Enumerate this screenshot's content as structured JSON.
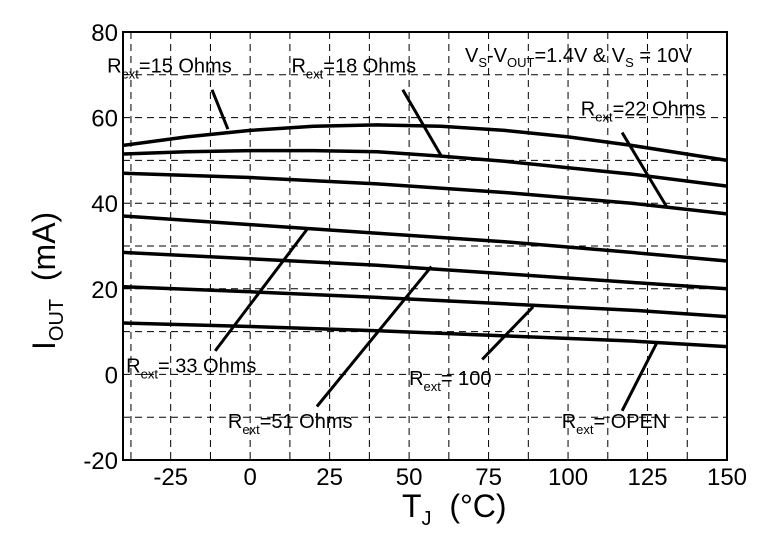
{
  "chart_data": {
    "type": "line",
    "xlabel": {
      "main": "T",
      "sub": "J",
      "rest": "  (°C)"
    },
    "ylabel": {
      "main": "I",
      "sub": "OUT",
      "rest": "  (mA)"
    },
    "xlim": [
      -40,
      150
    ],
    "ylim": [
      -20,
      80
    ],
    "x_ticks": [
      -25,
      0,
      25,
      50,
      75,
      100,
      125,
      150
    ],
    "y_ticks": [
      -20,
      0,
      20,
      40,
      60,
      80
    ],
    "grid": true,
    "condition": {
      "p1": "V",
      "s1": "S",
      "p2": "-V",
      "s2": "OUT",
      "p3": "=1.4V & V",
      "s3": "S",
      "p4": " = 10V"
    },
    "series": [
      {
        "name": "15 Ohms",
        "x": [
          -40,
          -20,
          0,
          20,
          40,
          60,
          80,
          100,
          120,
          150
        ],
        "y": [
          53.5,
          55.5,
          57.0,
          58.0,
          58.3,
          58.0,
          57.0,
          55.5,
          53.5,
          50.0
        ]
      },
      {
        "name": "18 Ohms",
        "x": [
          -40,
          -20,
          0,
          20,
          40,
          60,
          80,
          100,
          120,
          150
        ],
        "y": [
          51.5,
          52.0,
          52.3,
          52.3,
          52.0,
          51.0,
          49.8,
          48.3,
          46.8,
          44.0
        ]
      },
      {
        "name": "22 Ohms",
        "x": [
          -40,
          0,
          40,
          80,
          120,
          150
        ],
        "y": [
          47.0,
          46.0,
          44.5,
          42.5,
          40.0,
          37.5
        ]
      },
      {
        "name": "33 Ohms",
        "x": [
          -40,
          0,
          40,
          80,
          120,
          150
        ],
        "y": [
          37.0,
          35.0,
          33.0,
          31.0,
          28.5,
          26.5
        ]
      },
      {
        "name": "51 Ohms",
        "x": [
          -40,
          0,
          40,
          80,
          120,
          150
        ],
        "y": [
          28.5,
          27.0,
          25.5,
          23.5,
          21.5,
          20.0
        ]
      },
      {
        "name": "100",
        "x": [
          -40,
          0,
          40,
          80,
          120,
          150
        ],
        "y": [
          20.5,
          19.3,
          18.0,
          16.5,
          15.0,
          13.5
        ]
      },
      {
        "name": "OPEN",
        "x": [
          -40,
          0,
          40,
          80,
          120,
          150
        ],
        "y": [
          12.0,
          11.2,
          10.2,
          9.0,
          7.8,
          6.5
        ]
      }
    ],
    "annotations": [
      {
        "id": "r15",
        "prefix": "R",
        "sub": "ext",
        "text": "=15 Ohms",
        "x": -45,
        "y": 70.5,
        "leader": [
          [
            -12,
            66.5
          ],
          [
            -7,
            57.3
          ]
        ]
      },
      {
        "id": "r18",
        "prefix": "R",
        "sub": "ext",
        "text": "=18 Ohms",
        "x": 13,
        "y": 70.5,
        "leader": [
          [
            48,
            66.5
          ],
          [
            60,
            51.2
          ]
        ]
      },
      {
        "id": "r22",
        "prefix": "R",
        "sub": "ext",
        "text": "=22 Ohms",
        "x": 104,
        "y": 60.5,
        "leader": [
          [
            117,
            56.5
          ],
          [
            131,
            39.2
          ]
        ]
      },
      {
        "id": "r33",
        "prefix": "R",
        "sub": "ext",
        "text": "= 33 Ohms",
        "x": -39,
        "y": 0.5,
        "leader": [
          [
            -11,
            5.5
          ],
          [
            18,
            34.0
          ]
        ]
      },
      {
        "id": "r51",
        "prefix": "R",
        "sub": "ext",
        "text": "=51 Ohms",
        "x": -7,
        "y": -12.5,
        "leader": [
          [
            21,
            -7.5
          ],
          [
            57,
            25.2
          ]
        ]
      },
      {
        "id": "r100",
        "prefix": "R",
        "sub": "ext",
        "text": "= 100",
        "x": 50,
        "y": -2.5,
        "leader": [
          [
            73,
            3.5
          ],
          [
            89,
            15.8
          ]
        ]
      },
      {
        "id": "ropen",
        "prefix": "R",
        "sub": "ext",
        "text": "= OPEN",
        "x": 98,
        "y": -12.5,
        "leader": [
          [
            117,
            -8.5
          ],
          [
            128,
            7.5
          ]
        ]
      }
    ]
  }
}
